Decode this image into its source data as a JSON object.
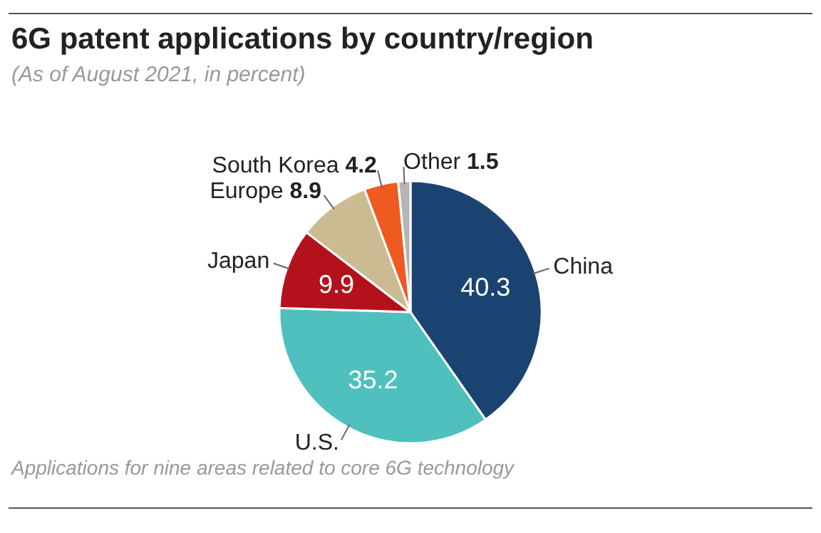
{
  "chart_data": {
    "type": "pie",
    "title": "6G patent applications by country/region",
    "subtitle": "(As of August 2021, in percent)",
    "categories": [
      "China",
      "U.S.",
      "Japan",
      "Europe",
      "South Korea",
      "Other"
    ],
    "values": [
      40.3,
      35.2,
      9.9,
      8.9,
      4.2,
      1.5
    ],
    "colors": [
      "#1b4372",
      "#4fc0bd",
      "#b3121d",
      "#cbbb92",
      "#ee5a20",
      "#b5b5b5"
    ],
    "data_labels": true,
    "legend": false,
    "annotations": [
      "Applications for nine areas related to core 6G technology"
    ]
  }
}
